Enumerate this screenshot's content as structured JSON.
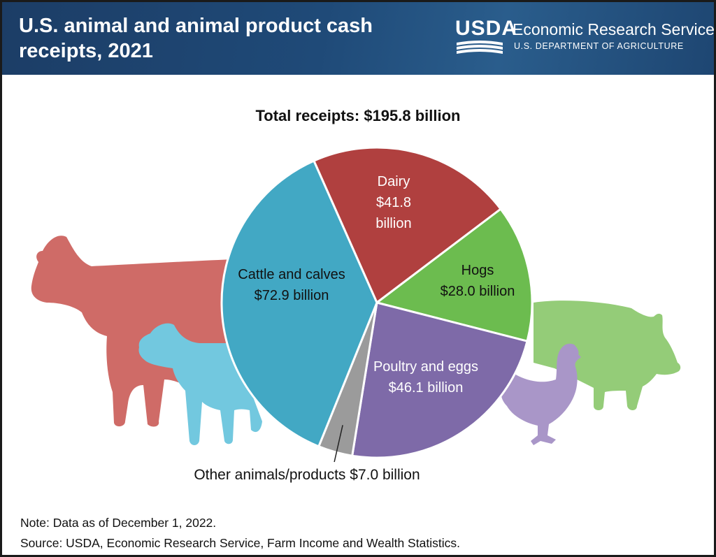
{
  "header": {
    "title_line1": "U.S. animal and animal product cash",
    "title_line2": "receipts, 2021",
    "logo_text": "USDA",
    "agency": "Economic Research Service",
    "department": "U.S. DEPARTMENT OF AGRICULTURE"
  },
  "colors": {
    "header_bg": "#1f4a78",
    "cattle": "#42a8c4",
    "dairy": "#b0403f",
    "hogs": "#6cbc4f",
    "poultry": "#7e6aa8",
    "other": "#9b9b9b",
    "cow_silhouette": "#cf6b67",
    "calf_silhouette": "#72c8df",
    "pig_silhouette": "#94cc78",
    "hen_silhouette": "#a996c8"
  },
  "chart_data": {
    "type": "pie",
    "title": "Total receipts: $195.8 billion",
    "unit": "billion dollars",
    "total": 195.8,
    "slices": [
      {
        "name": "Dairy",
        "value": 41.8,
        "label_lines": [
          "Dairy",
          "$41.8",
          "billion"
        ],
        "color": "#b0403f",
        "text_color": "#ffffff"
      },
      {
        "name": "Hogs",
        "value": 28.0,
        "label_lines": [
          "Hogs",
          "$28.0 billion"
        ],
        "color": "#6cbc4f",
        "text_color": "#111111"
      },
      {
        "name": "Poultry and eggs",
        "value": 46.1,
        "label_lines": [
          "Poultry and eggs",
          "$46.1 billion"
        ],
        "color": "#7e6aa8",
        "text_color": "#ffffff"
      },
      {
        "name": "Other animals/products",
        "value": 7.0,
        "label_lines": [
          "Other animals/products $7.0 billion"
        ],
        "color": "#9b9b9b",
        "text_color": "#111111",
        "outside_label": true
      },
      {
        "name": "Cattle and calves",
        "value": 72.9,
        "label_lines": [
          "Cattle and calves",
          "$72.9 billion"
        ],
        "color": "#42a8c4",
        "text_color": "#111111"
      }
    ]
  },
  "footer": {
    "note": "Note: Data as of December 1, 2022.",
    "source": "Source: USDA, Economic Research Service, Farm Income and Wealth Statistics."
  }
}
